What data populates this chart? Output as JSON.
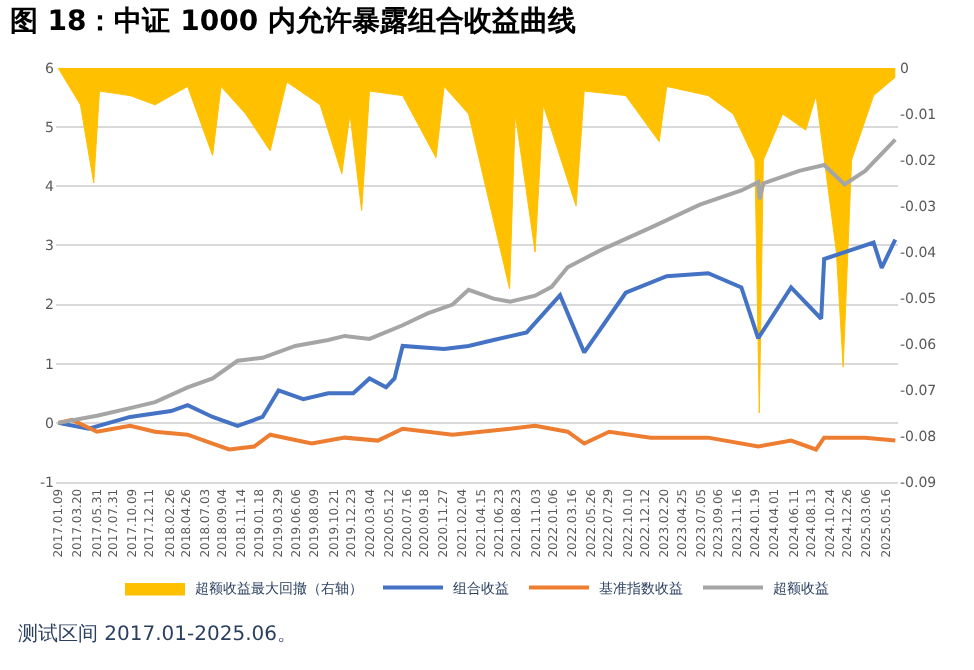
{
  "chart_data": {
    "type": "line",
    "title": "图 18：中证 1000 内允许暴露组合收益曲线",
    "annotations": [
      "测试区间 2017.01-2025.06。"
    ],
    "legend": "bottom",
    "grid": "y",
    "xlim": [
      "2017-01-01",
      "2025-06-30"
    ],
    "xticks": [
      {
        "value": "2017-01-09",
        "label": "2017.01.09"
      },
      {
        "value": "2017-03-20",
        "label": "2017.03.20"
      },
      {
        "value": "2017-05-31",
        "label": "2017.05.31"
      },
      {
        "value": "2017-07-31",
        "label": "2017.07.31"
      },
      {
        "value": "2017-10-09",
        "label": "2017.10.09"
      },
      {
        "value": "2017-12-11",
        "label": "2017.12.11"
      },
      {
        "value": "2018-02-26",
        "label": "2018.02.26"
      },
      {
        "value": "2018-04-26",
        "label": "2018.04.26"
      },
      {
        "value": "2018-07-03",
        "label": "2018.07.03"
      },
      {
        "value": "2018-09-04",
        "label": "2018.09.04"
      },
      {
        "value": "2018-11-14",
        "label": "2018.11.14"
      },
      {
        "value": "2019-01-18",
        "label": "2019.01.18"
      },
      {
        "value": "2019-03-29",
        "label": "2019.03.29"
      },
      {
        "value": "2019-06-06",
        "label": "2019.06.06"
      },
      {
        "value": "2019-08-09",
        "label": "2019.08.09"
      },
      {
        "value": "2019-10-21",
        "label": "2019.10.21"
      },
      {
        "value": "2019-12-23",
        "label": "2019.12.23"
      },
      {
        "value": "2020-03-04",
        "label": "2020.03.04"
      },
      {
        "value": "2020-05-12",
        "label": "2020.05.12"
      },
      {
        "value": "2020-07-16",
        "label": "2020.07.16"
      },
      {
        "value": "2020-09-18",
        "label": "2020.09.18"
      },
      {
        "value": "2020-11-27",
        "label": "2020.11.27"
      },
      {
        "value": "2021-02-04",
        "label": "2021.02.04"
      },
      {
        "value": "2021-04-15",
        "label": "2021.04.15"
      },
      {
        "value": "2021-06-23",
        "label": "2021.06.23"
      },
      {
        "value": "2021-08-23",
        "label": "2021.08.23"
      },
      {
        "value": "2021-11-03",
        "label": "2021.11.03"
      },
      {
        "value": "2022-01-06",
        "label": "2022.01.06"
      },
      {
        "value": "2022-03-16",
        "label": "2022.03.16"
      },
      {
        "value": "2022-05-26",
        "label": "2022.05.26"
      },
      {
        "value": "2022-07-29",
        "label": "2022.07.29"
      },
      {
        "value": "2022-10-10",
        "label": "2022.10.10"
      },
      {
        "value": "2022-12-12",
        "label": "2022.12.12"
      },
      {
        "value": "2023-02-20",
        "label": "2023.02.20"
      },
      {
        "value": "2023-04-25",
        "label": "2023.04.25"
      },
      {
        "value": "2023-07-05",
        "label": "2023.07.05"
      },
      {
        "value": "2023-09-06",
        "label": "2023.09.06"
      },
      {
        "value": "2023-11-16",
        "label": "2023.11.16"
      },
      {
        "value": "2024-01-19",
        "label": "2024.01.19"
      },
      {
        "value": "2024-04-01",
        "label": "2024.04.01"
      },
      {
        "value": "2024-06-11",
        "label": "2024.06.11"
      },
      {
        "value": "2024-08-13",
        "label": "2024.08.13"
      },
      {
        "value": "2024-10-24",
        "label": "2024.10.24"
      },
      {
        "value": "2024-12-26",
        "label": "2024.12.26"
      },
      {
        "value": "2025-03-06",
        "label": "2025.03.06"
      },
      {
        "value": "2025-05-16",
        "label": "2025.05.16"
      }
    ],
    "ylim": [
      -1,
      6
    ],
    "yticks": [
      -1,
      0,
      1,
      2,
      3,
      4,
      5,
      6
    ],
    "y2lim": [
      -0.09,
      0
    ],
    "y2ticks": [
      -0.09,
      -0.08,
      -0.07,
      -0.06,
      -0.05,
      -0.04,
      -0.03,
      -0.02,
      -0.01,
      0
    ],
    "series": [
      {
        "name": "超额收益最大回撤（右轴）",
        "type": "area",
        "axis": "y2",
        "color": "#ffc000",
        "x": [
          "2017-01-09",
          "2017-04-01",
          "2017-05-20",
          "2017-06-10",
          "2017-10-01",
          "2018-01-01",
          "2018-05-01",
          "2018-08-01",
          "2018-09-01",
          "2018-12-01",
          "2019-03-01",
          "2019-05-01",
          "2019-09-01",
          "2019-11-20",
          "2019-12-20",
          "2020-02-01",
          "2020-03-01",
          "2020-07-01",
          "2020-11-01",
          "2020-12-01",
          "2021-03-01",
          "2021-07-30",
          "2021-08-20",
          "2021-11-01",
          "2021-12-01",
          "2022-04-01",
          "2022-05-01",
          "2022-10-01",
          "2023-02-01",
          "2023-03-01",
          "2023-08-01",
          "2023-11-01",
          "2024-01-20",
          "2024-02-05",
          "2024-02-20",
          "2024-05-01",
          "2024-07-25",
          "2024-09-01",
          "2024-11-15",
          "2024-12-10",
          "2025-01-10",
          "2025-04-01",
          "2025-06-20"
        ],
        "values": [
          0,
          -0.008,
          -0.025,
          -0.005,
          -0.006,
          -0.008,
          -0.004,
          -0.019,
          -0.004,
          -0.01,
          -0.018,
          -0.003,
          -0.008,
          -0.023,
          -0.01,
          -0.031,
          -0.005,
          -0.006,
          -0.0195,
          -0.004,
          -0.01,
          -0.048,
          -0.01,
          -0.04,
          -0.008,
          -0.03,
          -0.005,
          -0.006,
          -0.016,
          -0.004,
          -0.006,
          -0.01,
          -0.02,
          -0.075,
          -0.02,
          -0.01,
          -0.0135,
          -0.006,
          -0.04,
          -0.065,
          -0.02,
          -0.006,
          -0.002
        ]
      },
      {
        "name": "组合收益",
        "color": "#4472c4",
        "x": [
          "2017-01-09",
          "2017-05-01",
          "2017-10-01",
          "2018-03-01",
          "2018-05-01",
          "2018-08-01",
          "2018-11-01",
          "2019-02-01",
          "2019-04-01",
          "2019-07-01",
          "2019-10-01",
          "2020-01-01",
          "2020-03-01",
          "2020-05-01",
          "2020-06-01",
          "2020-07-01",
          "2020-12-01",
          "2021-03-01",
          "2021-06-01",
          "2021-10-01",
          "2022-02-01",
          "2022-05-01",
          "2022-10-01",
          "2023-03-01",
          "2023-08-01",
          "2023-12-01",
          "2024-02-01",
          "2024-06-01",
          "2024-09-20",
          "2024-10-01",
          "2025-02-01",
          "2025-04-01",
          "2025-05-01",
          "2025-06-20"
        ],
        "values": [
          0,
          -0.1,
          0.1,
          0.2,
          0.3,
          0.1,
          -0.05,
          0.1,
          0.55,
          0.4,
          0.5,
          0.5,
          0.75,
          0.6,
          0.75,
          1.3,
          1.25,
          1.3,
          1.4,
          1.53,
          2.16,
          1.19,
          2.2,
          2.48,
          2.53,
          2.29,
          1.43,
          2.29,
          1.76,
          2.77,
          2.96,
          3.05,
          2.62,
          3.1
        ]
      },
      {
        "name": "基准指数收益",
        "color": "#ed7d31",
        "x": [
          "2017-01-09",
          "2017-03-01",
          "2017-06-01",
          "2017-10-01",
          "2018-01-01",
          "2018-05-01",
          "2018-08-01",
          "2018-10-01",
          "2019-01-01",
          "2019-03-01",
          "2019-08-01",
          "2019-12-01",
          "2020-04-01",
          "2020-07-01",
          "2021-01-01",
          "2021-08-01",
          "2021-11-01",
          "2022-03-01",
          "2022-05-01",
          "2022-08-01",
          "2023-01-01",
          "2023-08-01",
          "2024-02-01",
          "2024-06-01",
          "2024-09-01",
          "2024-10-01",
          "2025-03-01",
          "2025-06-20"
        ],
        "values": [
          0,
          0.05,
          -0.15,
          -0.05,
          -0.15,
          -0.2,
          -0.35,
          -0.45,
          -0.4,
          -0.2,
          -0.35,
          -0.25,
          -0.3,
          -0.1,
          -0.2,
          -0.1,
          -0.05,
          -0.15,
          -0.35,
          -0.15,
          -0.25,
          -0.25,
          -0.4,
          -0.3,
          -0.45,
          -0.25,
          -0.25,
          -0.3
        ]
      },
      {
        "name": "超额收益",
        "color": "#a5a5a5",
        "x": [
          "2017-01-09",
          "2017-06-01",
          "2017-10-01",
          "2018-01-01",
          "2018-05-01",
          "2018-08-01",
          "2018-11-01",
          "2019-02-01",
          "2019-06-01",
          "2019-10-01",
          "2019-12-01",
          "2020-03-01",
          "2020-07-01",
          "2020-10-01",
          "2021-01-01",
          "2021-03-01",
          "2021-06-01",
          "2021-08-01",
          "2021-11-01",
          "2022-01-01",
          "2022-03-01",
          "2022-07-01",
          "2023-01-01",
          "2023-07-01",
          "2023-12-01",
          "2024-02-01",
          "2024-02-06",
          "2024-02-20",
          "2024-07-01",
          "2024-10-01",
          "2024-12-15",
          "2025-03-01",
          "2025-06-20"
        ],
        "values": [
          0,
          0.12,
          0.25,
          0.35,
          0.6,
          0.75,
          1.05,
          1.1,
          1.3,
          1.4,
          1.47,
          1.42,
          1.65,
          1.85,
          2.0,
          2.25,
          2.1,
          2.05,
          2.15,
          2.3,
          2.63,
          2.92,
          3.3,
          3.69,
          3.93,
          4.07,
          3.78,
          4.05,
          4.26,
          4.36,
          4.03,
          4.26,
          4.79
        ]
      }
    ]
  }
}
